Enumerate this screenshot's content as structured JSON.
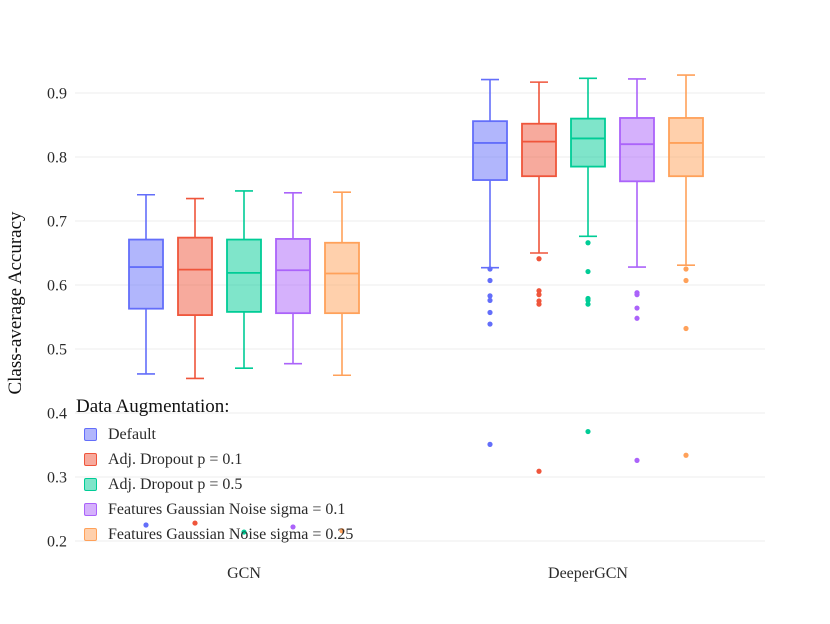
{
  "chart_data": {
    "type": "box",
    "title": "",
    "xlabel": "",
    "ylabel": "Class-average Accuracy",
    "ylim": [
      0.2,
      0.95
    ],
    "yticks": [
      0.2,
      0.3,
      0.4,
      0.5,
      0.6,
      0.7,
      0.8,
      0.9
    ],
    "ytick_labels": [
      "0.2",
      "0.3",
      "0.4",
      "0.5",
      "0.6",
      "0.7",
      "0.8",
      "0.9"
    ],
    "categories": [
      "GCN",
      "DeeperGCN"
    ],
    "legend_title": "Data Augmentation:",
    "series": [
      {
        "name": "Default",
        "color": "#636efa",
        "boxes": [
          {
            "min": 0.461,
            "q1": 0.563,
            "median": 0.628,
            "q3": 0.671,
            "max": 0.741,
            "outliers": [
              0.225
            ]
          },
          {
            "min": 0.627,
            "q1": 0.764,
            "median": 0.822,
            "q3": 0.856,
            "max": 0.921,
            "outliers": [
              0.625,
              0.607,
              0.583,
              0.576,
              0.557,
              0.539,
              0.351
            ]
          }
        ]
      },
      {
        "name": "Adj. Dropout p = 0.1",
        "color": "#ef553b",
        "boxes": [
          {
            "min": 0.454,
            "q1": 0.553,
            "median": 0.624,
            "q3": 0.674,
            "max": 0.735,
            "outliers": [
              0.228
            ]
          },
          {
            "min": 0.65,
            "q1": 0.77,
            "median": 0.824,
            "q3": 0.852,
            "max": 0.917,
            "outliers": [
              0.641,
              0.591,
              0.585,
              0.575,
              0.57,
              0.309
            ]
          }
        ]
      },
      {
        "name": "Adj. Dropout p = 0.5",
        "color": "#00cc96",
        "boxes": [
          {
            "min": 0.47,
            "q1": 0.558,
            "median": 0.619,
            "q3": 0.671,
            "max": 0.747,
            "outliers": [
              0.214
            ]
          },
          {
            "min": 0.676,
            "q1": 0.785,
            "median": 0.829,
            "q3": 0.86,
            "max": 0.923,
            "outliers": [
              0.666,
              0.621,
              0.579,
              0.576,
              0.57,
              0.371
            ]
          }
        ]
      },
      {
        "name": "Features Gaussian Noise sigma = 0.1",
        "color": "#ab63fa",
        "boxes": [
          {
            "min": 0.477,
            "q1": 0.556,
            "median": 0.623,
            "q3": 0.672,
            "max": 0.744,
            "outliers": [
              0.222
            ]
          },
          {
            "min": 0.628,
            "q1": 0.762,
            "median": 0.82,
            "q3": 0.861,
            "max": 0.922,
            "outliers": [
              0.588,
              0.585,
              0.564,
              0.548,
              0.326
            ]
          }
        ]
      },
      {
        "name": "Features Gaussian Noise sigma = 0.25",
        "color": "#ffa15a",
        "boxes": [
          {
            "min": 0.459,
            "q1": 0.556,
            "median": 0.618,
            "q3": 0.666,
            "max": 0.745,
            "outliers": [
              0.216
            ]
          },
          {
            "min": 0.631,
            "q1": 0.77,
            "median": 0.822,
            "q3": 0.861,
            "max": 0.928,
            "outliers": [
              0.625,
              0.607,
              0.532,
              0.334
            ]
          }
        ]
      }
    ]
  }
}
